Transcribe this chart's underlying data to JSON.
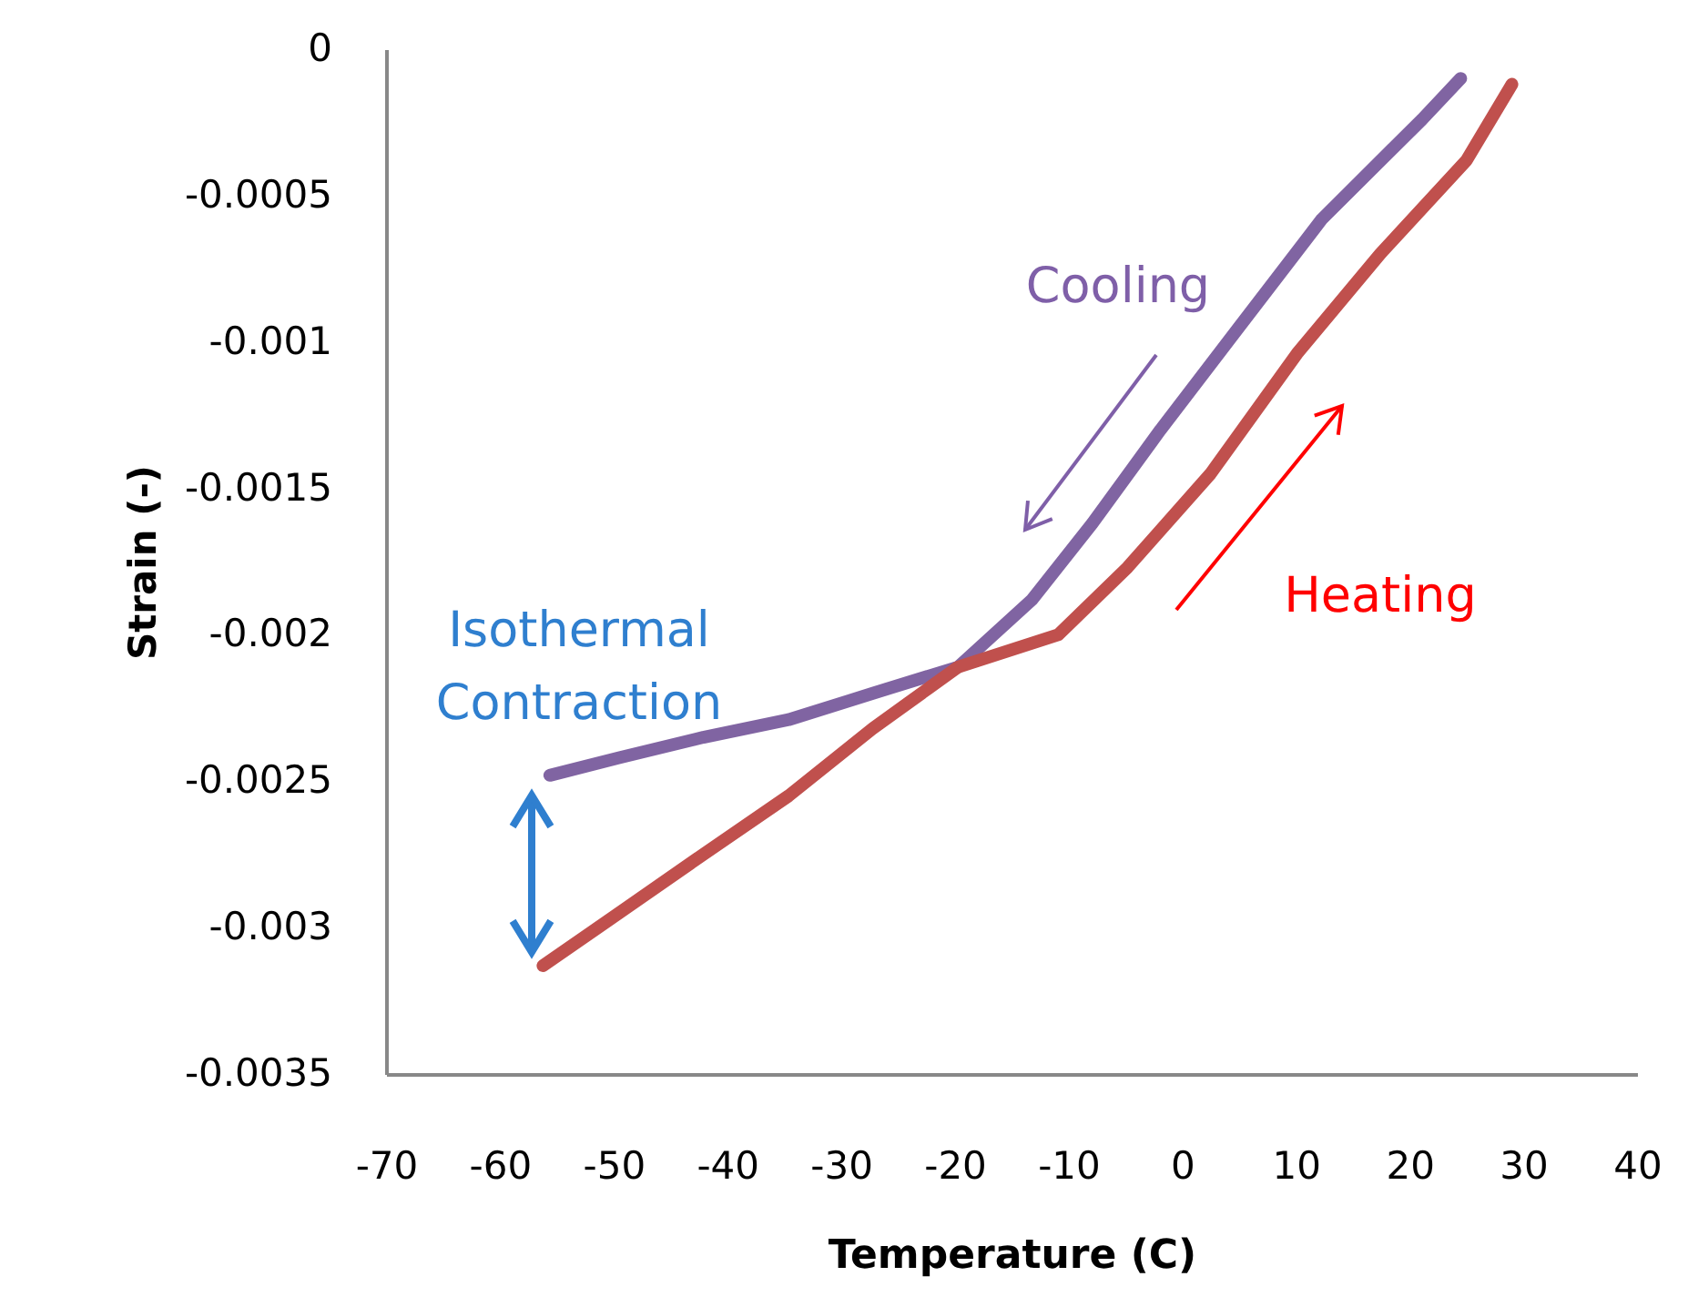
{
  "chart_data": {
    "type": "line",
    "xlabel": "Temperature (C)",
    "ylabel": "Strain (-)",
    "xlim": [
      -70,
      40
    ],
    "xticks": [
      -70,
      -60,
      -50,
      -40,
      -30,
      -20,
      -10,
      0,
      10,
      20,
      30,
      40
    ],
    "ylim": [
      -0.0035,
      0
    ],
    "yticks": [
      -0.0035,
      -0.003,
      -0.0025,
      -0.002,
      -0.0015,
      -0.001,
      -0.0005,
      0
    ],
    "grid": false,
    "marker": "none",
    "line_style": "solid",
    "series": [
      {
        "color": "#8064a2",
        "x": [
          24.5,
          21.1,
          12.3,
          4.8,
          -1.9,
          -7.9,
          -13.2,
          -19.7,
          -27.2,
          -34.6,
          -42.1,
          -49.5,
          -55.6
        ],
        "values": [
          -0.0001,
          -0.00024,
          -0.00058,
          -0.00096,
          -0.0013,
          -0.00162,
          -0.00188,
          -0.00211,
          -0.0022,
          -0.00229,
          -0.00235,
          -0.00242,
          -0.00248
        ]
      },
      {
        "color": "#c0504d",
        "x": [
          -56.2,
          -49.5,
          -42.1,
          -34.6,
          -27.2,
          -19.7,
          -10.9,
          -4.8,
          2.5,
          10.1,
          17.4,
          25,
          29
        ],
        "values": [
          -0.00313,
          -0.00295,
          -0.00275,
          -0.00255,
          -0.00232,
          -0.00211,
          -0.002,
          -0.00177,
          -0.00145,
          -0.00104,
          -0.0007,
          -0.00038,
          -0.00012
        ]
      }
    ],
    "annotations": [
      "Cooling",
      "Heating",
      "Isothermal Contraction"
    ]
  }
}
